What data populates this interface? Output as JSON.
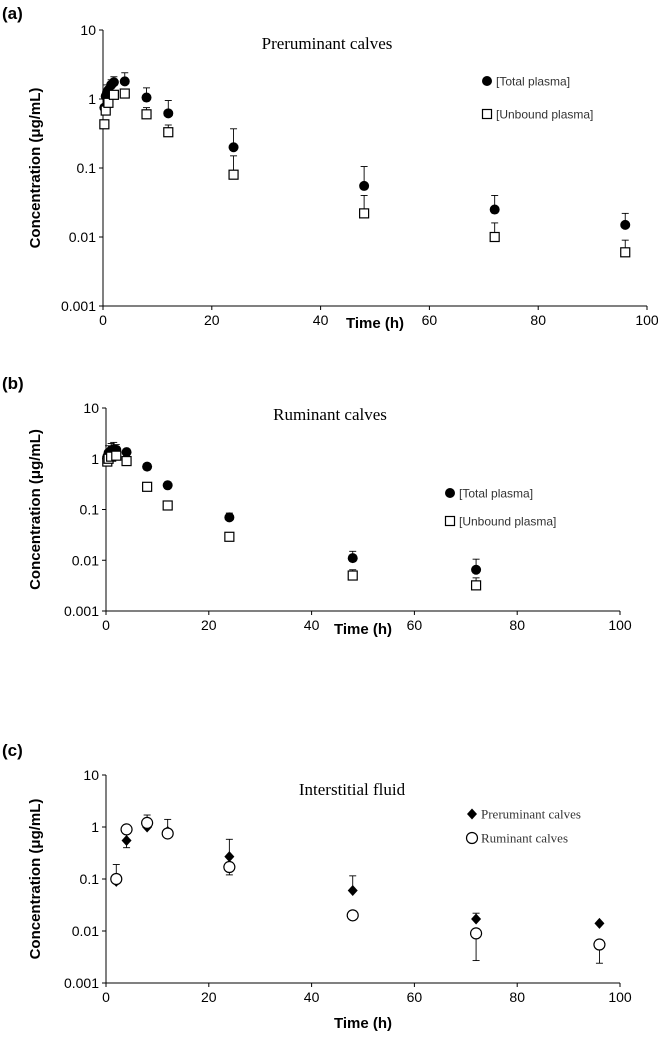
{
  "chart_data": [
    {
      "type": "scatter",
      "panel_label": "(a)",
      "title": "Preruminant calves",
      "xlabel": "Time (h)",
      "ylabel": "Concentration (μg/mL)",
      "xlim": [
        0,
        100
      ],
      "ylim": [
        0.001,
        10
      ],
      "yscale": "log",
      "x_ticks": [
        "0",
        "20",
        "40",
        "60",
        "80",
        "100"
      ],
      "y_ticks": [
        "0.001",
        "0.01",
        "0.1",
        "1",
        "10"
      ],
      "grid": false,
      "legend_position": "right",
      "series": [
        {
          "name": "[Total plasma]",
          "marker": "filled-circle",
          "color": "#000000",
          "x": [
            0.25,
            0.5,
            0.75,
            1,
            1.5,
            2,
            4,
            8,
            12,
            24,
            48,
            72,
            96
          ],
          "y": [
            0.75,
            1.1,
            1.25,
            1.35,
            1.6,
            1.75,
            1.8,
            1.05,
            0.62,
            0.2,
            0.055,
            0.025,
            0.015
          ],
          "error_upper": [
            null,
            null,
            1.6,
            null,
            1.9,
            2.1,
            2.4,
            1.45,
            0.95,
            0.37,
            0.105,
            0.04,
            0.022
          ]
        },
        {
          "name": "[Unbound plasma]",
          "marker": "open-square",
          "color": "#000000",
          "x": [
            0.25,
            0.5,
            1,
            2,
            4,
            8,
            12,
            24,
            48,
            72,
            96
          ],
          "y": [
            0.43,
            0.68,
            0.88,
            1.15,
            1.2,
            0.6,
            0.33,
            0.08,
            0.022,
            0.01,
            0.006
          ],
          "error_upper": [
            null,
            null,
            1.2,
            null,
            null,
            0.75,
            0.42,
            0.15,
            0.04,
            0.016,
            0.009
          ]
        }
      ]
    },
    {
      "type": "scatter",
      "panel_label": "(b)",
      "title": "Ruminant calves",
      "xlabel": "Time (h)",
      "ylabel": "Concentration (μg/mL)",
      "xlim": [
        0,
        100
      ],
      "ylim": [
        0.001,
        10
      ],
      "yscale": "log",
      "x_ticks": [
        "0",
        "20",
        "40",
        "60",
        "80",
        "100"
      ],
      "y_ticks": [
        "0.001",
        "0.01",
        "0.1",
        "1",
        "10"
      ],
      "grid": false,
      "legend_position": "right",
      "series": [
        {
          "name": "[Total plasma]",
          "marker": "filled-circle",
          "color": "#000000",
          "x": [
            0.25,
            0.5,
            1,
            1.5,
            2,
            4,
            8,
            12,
            24,
            48,
            72
          ],
          "y": [
            1.1,
            1.3,
            1.45,
            1.55,
            1.5,
            1.35,
            0.7,
            0.3,
            0.07,
            0.011,
            0.0065
          ],
          "error_upper": [
            null,
            1.8,
            2.0,
            2.1,
            1.9,
            1.55,
            0.8,
            0.35,
            0.085,
            0.015,
            0.0105
          ]
        },
        {
          "name": "[Unbound plasma]",
          "marker": "open-square",
          "color": "#000000",
          "x": [
            0.25,
            0.5,
            1,
            2,
            4,
            8,
            12,
            24,
            48,
            72
          ],
          "y": [
            0.88,
            1.0,
            1.1,
            1.15,
            0.9,
            0.28,
            0.12,
            0.029,
            0.005,
            0.0032
          ],
          "error_upper": [
            null,
            null,
            null,
            null,
            1.05,
            0.33,
            0.14,
            0.033,
            0.0065,
            0.0045
          ]
        }
      ]
    },
    {
      "type": "scatter",
      "panel_label": "(c)",
      "title": "Interstitial fluid",
      "xlabel": "Time (h)",
      "ylabel": "Concentration (μg/mL)",
      "xlim": [
        0,
        100
      ],
      "ylim": [
        0.001,
        10
      ],
      "yscale": "log",
      "x_ticks": [
        "0",
        "20",
        "40",
        "60",
        "80",
        "100"
      ],
      "y_ticks": [
        "0.001",
        "0.01",
        "0.1",
        "1",
        "10"
      ],
      "grid": false,
      "legend_position": "right",
      "series": [
        {
          "name": "Preruminant calves",
          "marker": "filled-diamond",
          "color": "#000000",
          "x": [
            2,
            4,
            8,
            12,
            24,
            48,
            72,
            96
          ],
          "y": [
            0.09,
            0.55,
            1.0,
            0.82,
            0.27,
            0.06,
            0.017,
            0.014
          ],
          "error_upper": [
            null,
            null,
            1.35,
            1.4,
            0.58,
            0.115,
            0.022,
            null
          ]
        },
        {
          "name": "Ruminant calves",
          "marker": "open-circle",
          "color": "#000000",
          "x": [
            2,
            4,
            8,
            12,
            24,
            48,
            72,
            96
          ],
          "y": [
            0.1,
            0.9,
            1.2,
            0.75,
            0.17,
            0.02,
            0.009,
            0.0055
          ],
          "error_upper": [
            0.19,
            null,
            1.7,
            null,
            null,
            null,
            null,
            null
          ],
          "error_lower": [
            null,
            0.4,
            null,
            null,
            0.12,
            null,
            0.0027,
            0.0024
          ]
        }
      ]
    }
  ]
}
